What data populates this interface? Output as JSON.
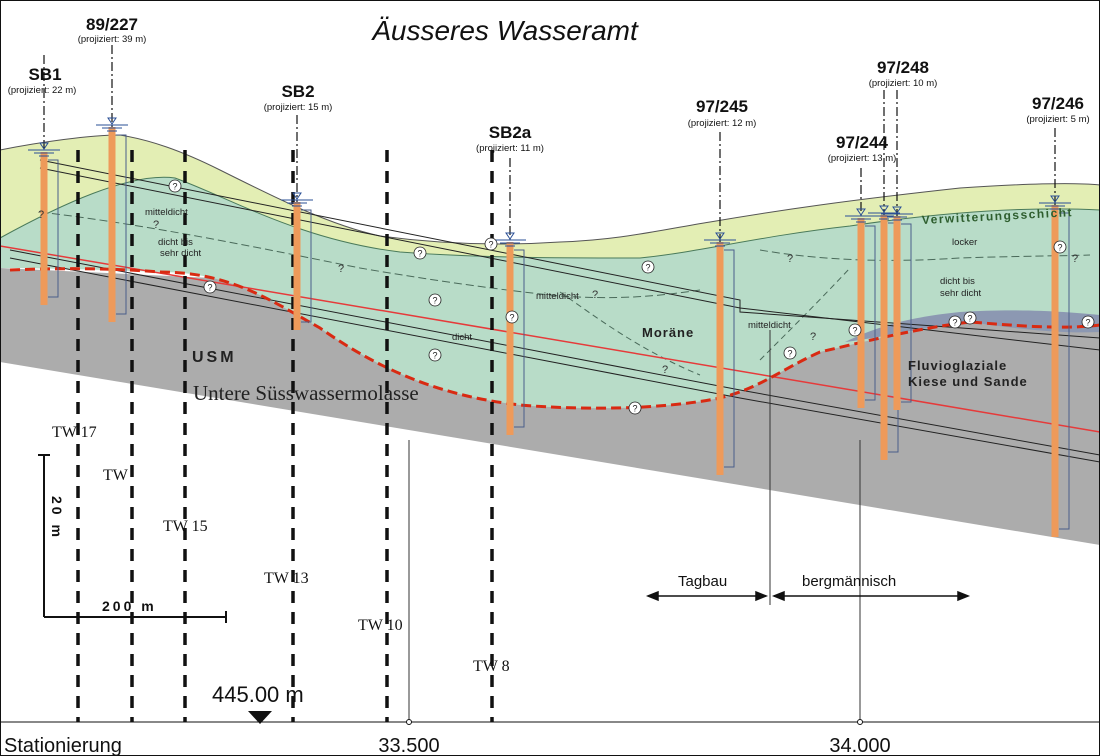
{
  "title": "Äusseres Wasseramt",
  "boreholes": [
    {
      "id": "SB1",
      "note": "(projiziert: 22 m)"
    },
    {
      "id": "89/227",
      "note": "(projiziert: 39 m)"
    },
    {
      "id": "SB2",
      "note": "(projiziert: 15 m)"
    },
    {
      "id": "SB2a",
      "note": "(projiziert: 11 m)"
    },
    {
      "id": "97/245",
      "note": "(projiziert: 12 m)"
    },
    {
      "id": "97/244",
      "note": "(projiziert: 13 m)"
    },
    {
      "id": "97/248",
      "note": "(projiziert: 10 m)"
    },
    {
      "id": "97/246",
      "note": "(projiziert: 5 m)"
    }
  ],
  "layers": {
    "weathering": "Verwitterungsschicht",
    "moraine": "Moräne",
    "fluvio_line1": "Fluvioglaziale",
    "fluvio_line2": "Kiese und Sande",
    "usm": "USM",
    "usm_full": "Untere Süsswassermolasse"
  },
  "density": {
    "left_mid": "mitteldicht",
    "left_dense_1": "dicht bis",
    "left_dense_2": "sehr dicht",
    "center_mid": "mitteldicht",
    "center_dense": "dicht",
    "right_mid": "mitteldicht",
    "right_loose": "locker",
    "right_dense_1": "dicht bis",
    "right_dense_2": "sehr dicht"
  },
  "unknown_mark": "?",
  "wells": [
    "TW 17",
    "TW",
    "TW 15",
    "TW 13",
    "TW 10",
    "TW 8"
  ],
  "scale": {
    "vertical": "20 m",
    "horizontal": "200 m"
  },
  "elevation": "445.00 m",
  "construction": {
    "left": "Tagbau",
    "right": "bergmännisch"
  },
  "axis": {
    "label": "Stationierung",
    "ticks": [
      "33.500",
      "34.000"
    ]
  },
  "colors": {
    "weathering": "#e3eeb4",
    "moraine": "#b8dcc8",
    "molasse": "#acacac",
    "gravel": "#8c98b2",
    "borehole": "#ee9a5a",
    "boundary": "#d92a12",
    "red_line": "#e63a3a",
    "water": "#2a4f96"
  }
}
